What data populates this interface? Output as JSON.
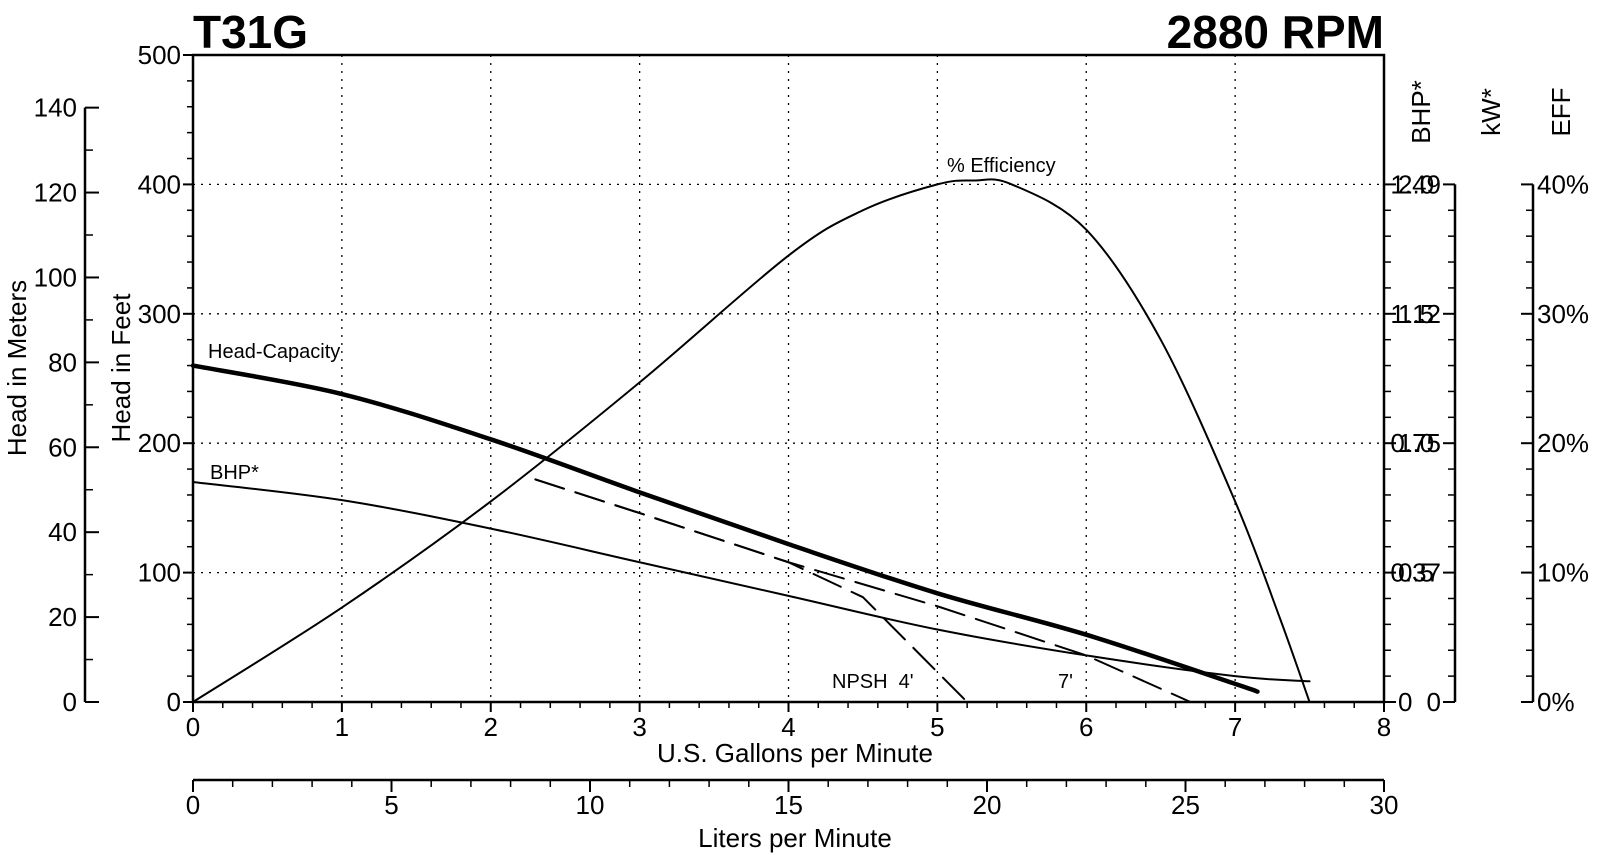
{
  "chart_data": {
    "type": "line",
    "title_left": "T31G",
    "title_right": "2880 RPM",
    "x_label": "U.S. Gallons per Minute",
    "x_ticks": [
      "0",
      "1",
      "2",
      "3",
      "4",
      "5",
      "6",
      "7",
      "8"
    ],
    "xlim": [
      0,
      8
    ],
    "x2_label": "Liters per Minute",
    "x2_ticks": [
      "0",
      "5",
      "10",
      "15",
      "20",
      "25",
      "30"
    ],
    "x2lim": [
      0,
      30
    ],
    "y_feet_label": "Head in Feet",
    "y_feet_ticks": [
      "0",
      "100",
      "200",
      "300",
      "400",
      "500"
    ],
    "y_feet_lim": [
      0,
      500
    ],
    "y_meters_label": "Head in Meters",
    "y_meters_ticks": [
      "0",
      "20",
      "40",
      "60",
      "80",
      "100",
      "120",
      "140"
    ],
    "y_meters_lim": [
      0,
      152.4
    ],
    "bhp_label": "BHP*",
    "bhp_ticks": [
      "0",
      "0.5",
      "1.0",
      "1.5",
      "2.0"
    ],
    "kw_label": "kW*",
    "kw_ticks": [
      "0",
      "0.37",
      "0.75",
      "1.12",
      "1.49"
    ],
    "eff_label": "EFF",
    "eff_ticks": [
      "0%",
      "10%",
      "20%",
      "30%",
      "40%"
    ],
    "grid": true,
    "series": [
      {
        "name": "Head-Capacity",
        "unit": "feet",
        "x": [
          0,
          1,
          2,
          3,
          4,
          5,
          6,
          7,
          7.15
        ],
        "y": [
          260,
          238,
          203,
          162,
          122,
          84,
          52,
          14,
          8
        ]
      },
      {
        "name": "BHP*",
        "unit": "BHP",
        "x": [
          0,
          1,
          2,
          3,
          4,
          5,
          6,
          7,
          7.5
        ],
        "y": [
          0.85,
          0.78,
          0.67,
          0.54,
          0.41,
          0.28,
          0.18,
          0.1,
          0.08
        ]
      },
      {
        "name": "% Efficiency",
        "unit": "percent",
        "x": [
          0,
          1,
          2,
          3,
          4,
          4.5,
          5,
          5.25,
          5.5,
          6,
          6.5,
          7,
          7.3,
          7.5
        ],
        "y": [
          0,
          7.3,
          15.5,
          24.7,
          34.5,
          38,
          40,
          40.3,
          40,
          36.5,
          28,
          15.5,
          6.5,
          0
        ]
      },
      {
        "name": "NPSH 4'",
        "unit": "feet",
        "x": [
          2.3,
          3,
          4,
          4.5,
          5.2
        ],
        "y": [
          172,
          146,
          108,
          81,
          0
        ]
      },
      {
        "name": "7'",
        "unit": "feet",
        "x": [
          2.3,
          3,
          4,
          5,
          6,
          6.7
        ],
        "y": [
          172,
          146,
          108,
          74,
          36,
          0
        ]
      }
    ],
    "annotations": [
      {
        "text": "Head-Capacity"
      },
      {
        "text": "BHP*"
      },
      {
        "text": "% Efficiency"
      },
      {
        "text": "NPSH  4'"
      },
      {
        "text": "7'"
      }
    ]
  }
}
